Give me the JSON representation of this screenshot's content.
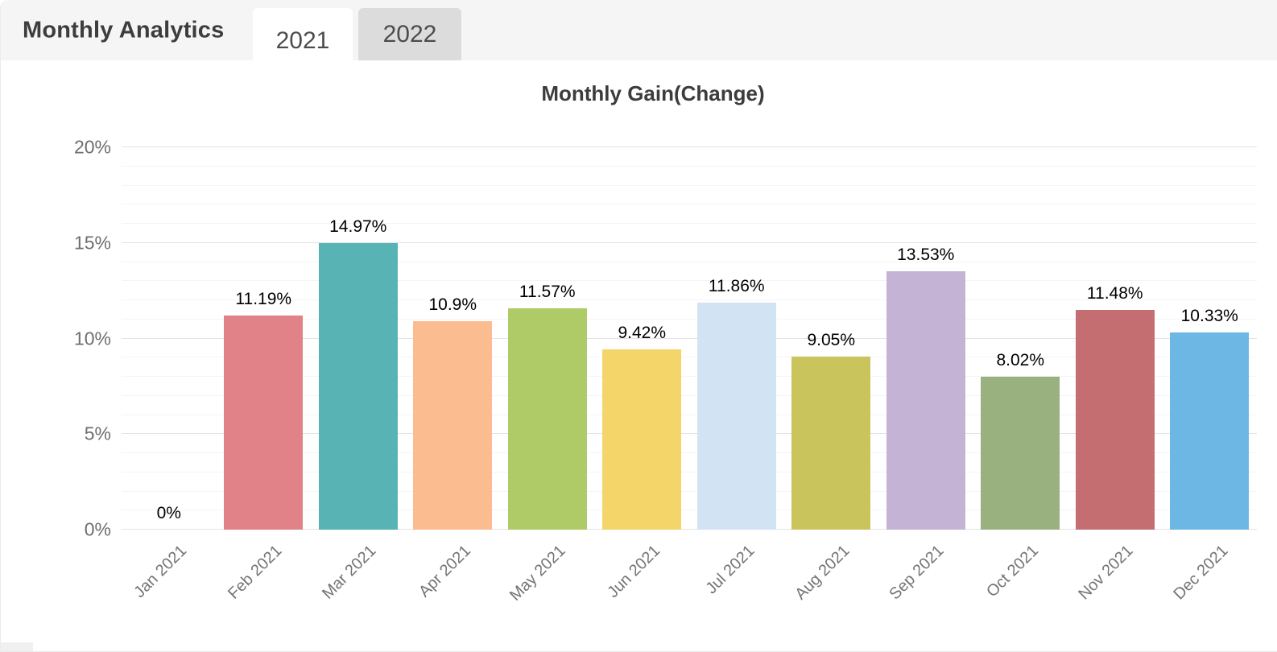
{
  "header": {
    "title": "Monthly Analytics",
    "tabs": [
      {
        "label": "2021",
        "active": true
      },
      {
        "label": "2022",
        "active": false
      }
    ]
  },
  "chart_data": {
    "type": "bar",
    "title": "Monthly Gain(Change)",
    "categories": [
      "Jan 2021",
      "Feb 2021",
      "Mar 2021",
      "Apr 2021",
      "May 2021",
      "Jun 2021",
      "Jul 2021",
      "Aug 2021",
      "Sep 2021",
      "Oct 2021",
      "Nov 2021",
      "Dec 2021"
    ],
    "values": [
      0,
      11.19,
      14.97,
      10.9,
      11.57,
      9.42,
      11.86,
      9.05,
      13.53,
      8.02,
      11.48,
      10.33
    ],
    "value_labels": [
      "0%",
      "11.19%",
      "14.97%",
      "10.9%",
      "11.57%",
      "9.42%",
      "11.86%",
      "9.05%",
      "13.53%",
      "8.02%",
      "11.48%",
      "10.33%"
    ],
    "bar_colors": [
      "#ffffff",
      "#e08287",
      "#57b3b4",
      "#fbbc90",
      "#aecb68",
      "#f3d569",
      "#d2e3f4",
      "#cac45c",
      "#c5b3d6",
      "#98b17e",
      "#c56e72",
      "#6cb7e3"
    ],
    "xlabel": "",
    "ylabel": "",
    "ylim": [
      0,
      20
    ],
    "y_tick_values": [
      0,
      5,
      10,
      15,
      20
    ],
    "y_tick_labels": [
      "0%",
      "5%",
      "10%",
      "15%",
      "20%"
    ],
    "minor_grid_step": 1,
    "major_grid_step": 5,
    "grid": "on",
    "legend": "none",
    "colors": {
      "header_bg": "#f5f5f5",
      "inactive_tab_bg": "#dcdcdc",
      "major_grid": "#e3e3e3",
      "minor_grid": "#f4f4f4",
      "axis_text": "#6e6e6e",
      "data_label_text": "#000000"
    }
  }
}
